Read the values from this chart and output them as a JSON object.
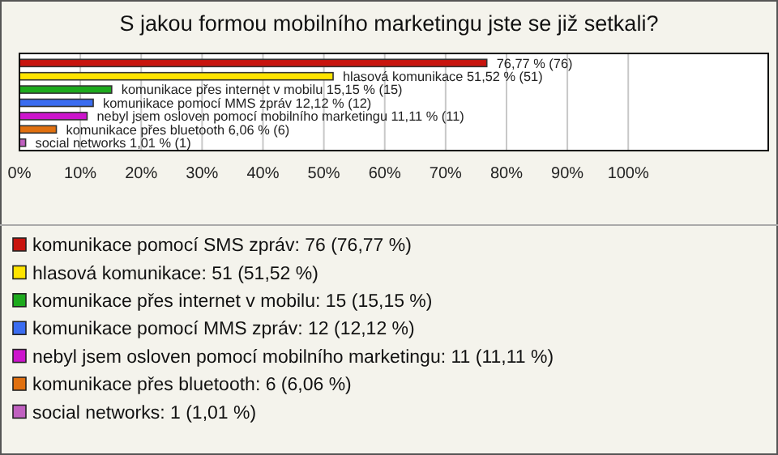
{
  "chart_data": {
    "type": "bar",
    "orientation": "horizontal",
    "title": "S jakou formou mobilního marketingu jste se již setkali?",
    "categories": [
      null,
      null,
      null,
      null,
      null,
      null,
      null
    ],
    "series": [
      {
        "name": "komunikace pomocí SMS zpráv: 76 (76,77 %)",
        "color": "#c8140e",
        "values": [
          76.77,
          null,
          null,
          null,
          null,
          null,
          null
        ],
        "value_labels": [
          "76,77 % (76)",
          null,
          null,
          null,
          null,
          null,
          null
        ]
      },
      {
        "name": "hlasová komunikace: 51 (51,52 %)",
        "color": "#ffe400",
        "values": [
          null,
          51.52,
          null,
          null,
          null,
          null,
          null
        ],
        "value_labels": [
          null,
          "hlasová komunikace 51,52 % (51)",
          null,
          null,
          null,
          null,
          null
        ]
      },
      {
        "name": "komunikace přes internet v mobilu: 15 (15,15 %)",
        "color": "#1daa1d",
        "values": [
          null,
          null,
          15.15,
          null,
          null,
          null,
          null
        ],
        "value_labels": [
          null,
          null,
          "komunikace přes internet v mobilu 15,15 % (15)",
          null,
          null,
          null,
          null
        ]
      },
      {
        "name": "komunikace pomocí MMS zpráv: 12 (12,12 %)",
        "color": "#3a6cf0",
        "values": [
          null,
          null,
          null,
          12.12,
          null,
          null,
          null
        ],
        "value_labels": [
          null,
          null,
          null,
          "komunikace pomocí MMS zpráv 12,12 % (12)",
          null,
          null,
          null
        ]
      },
      {
        "name": "nebyl jsem osloven pomocí mobilního marketingu: 11 (11,11 %)",
        "color": "#cc14cc",
        "values": [
          null,
          null,
          null,
          null,
          11.11,
          null,
          null
        ],
        "value_labels": [
          null,
          null,
          null,
          null,
          "nebyl jsem osloven pomocí mobilního marketingu 11,11 % (11)",
          null,
          null
        ]
      },
      {
        "name": "komunikace přes bluetooth: 6 (6,06 %)",
        "color": "#e07010",
        "values": [
          null,
          null,
          null,
          null,
          null,
          6.06,
          null
        ],
        "value_labels": [
          null,
          null,
          null,
          null,
          null,
          "komunikace přes bluetooth 6,06 % (6)",
          null
        ]
      },
      {
        "name": "social networks: 1 (1,01 %)",
        "color": "#c060c0",
        "values": [
          null,
          null,
          null,
          null,
          null,
          null,
          1.01
        ],
        "value_labels": [
          null,
          null,
          null,
          null,
          null,
          null,
          "social networks 1,01 % (1)"
        ]
      }
    ],
    "xlim": [
      0,
      123
    ],
    "xticks": [
      {
        "value": 0,
        "label": "0%"
      },
      {
        "value": 10,
        "label": "10%"
      },
      {
        "value": 20,
        "label": "20%"
      },
      {
        "value": 30,
        "label": "30%"
      },
      {
        "value": 40,
        "label": "40%"
      },
      {
        "value": 50,
        "label": "50%"
      },
      {
        "value": 60,
        "label": "60%"
      },
      {
        "value": 70,
        "label": "70%"
      },
      {
        "value": 80,
        "label": "80%"
      },
      {
        "value": 90,
        "label": "90%"
      },
      {
        "value": 100,
        "label": "100%"
      }
    ],
    "grid": "x",
    "legend": "bottom",
    "tick_labels": "x"
  }
}
